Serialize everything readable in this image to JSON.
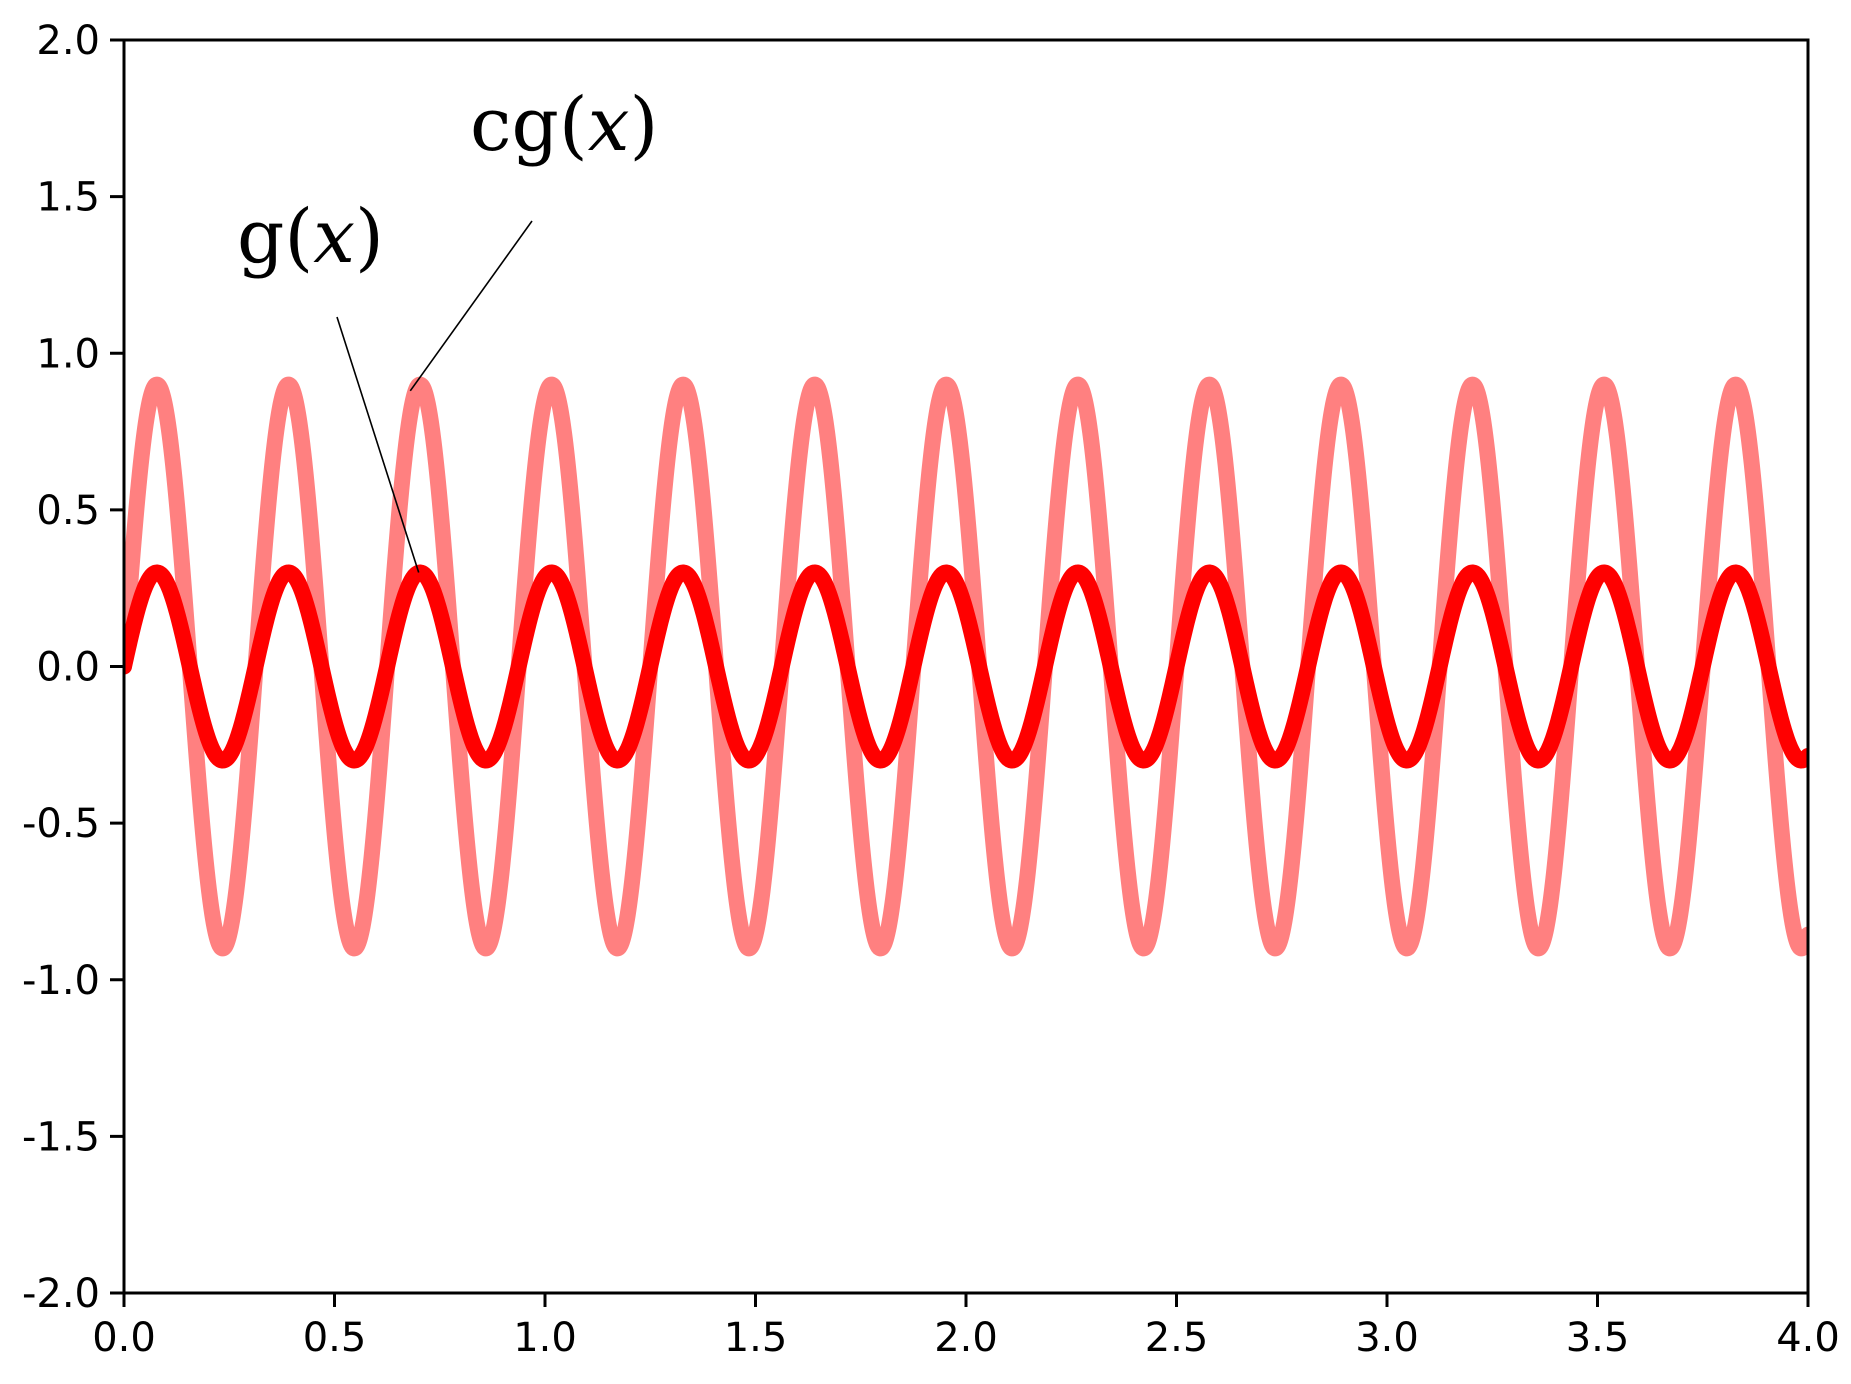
{
  "chart_data": {
    "type": "line",
    "title": "",
    "xlabel": "",
    "ylabel": "",
    "xlim": [
      0.0,
      4.0
    ],
    "ylim": [
      -2.0,
      2.0
    ],
    "grid": false,
    "legend": "none",
    "x_ticks": [
      "0.0",
      "0.5",
      "1.0",
      "1.5",
      "2.0",
      "2.5",
      "3.0",
      "3.5",
      "4.0"
    ],
    "y_ticks": [
      "-2.0",
      "-1.5",
      "-1.0",
      "-0.5",
      "0.0",
      "0.5",
      "1.0",
      "1.5",
      "2.0"
    ],
    "series": [
      {
        "name": "cg(x)",
        "formula": "0.9 * sin(2*pi*x/0.3125)",
        "amplitude": 0.9,
        "period": 0.3125,
        "color": "#ff8080",
        "x": [
          0.0,
          0.078,
          0.156,
          0.234,
          0.3125,
          0.391,
          0.469,
          0.547,
          0.625,
          0.703,
          0.781,
          0.859,
          0.9375,
          4.0
        ],
        "y": [
          0.0,
          0.9,
          0.0,
          -0.9,
          0.0,
          0.9,
          0.0,
          -0.9,
          0.0,
          0.9,
          0.0,
          -0.9,
          0.0,
          -0.9
        ]
      },
      {
        "name": "g(x)",
        "formula": "0.3 * sin(2*pi*x/0.3125)",
        "amplitude": 0.3,
        "period": 0.3125,
        "color": "#ff0000",
        "x": [
          0.0,
          0.078,
          0.156,
          0.234,
          0.3125,
          0.391,
          0.469,
          0.547,
          0.625,
          0.703,
          0.781,
          0.859,
          0.9375,
          4.0
        ],
        "y": [
          0.0,
          0.3,
          0.0,
          -0.3,
          0.0,
          0.3,
          0.0,
          -0.3,
          0.0,
          0.3,
          0.0,
          -0.3,
          0.0,
          -0.3
        ]
      }
    ],
    "annotations": [
      {
        "label_name": "cg",
        "label_var": "x",
        "text": "cg(x)",
        "points_to": {
          "x": 0.68,
          "y": 0.88
        }
      },
      {
        "label_name": "g",
        "label_var": "x",
        "text": "g(x)",
        "points_to": {
          "x": 0.7,
          "y": 0.3
        }
      }
    ]
  }
}
